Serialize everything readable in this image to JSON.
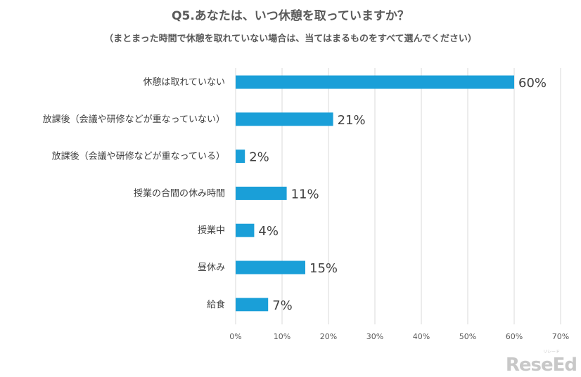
{
  "chart_data": {
    "type": "bar",
    "orientation": "horizontal",
    "title": "Q5.あなたは、いつ休憩を取っていますか？",
    "subtitle": "（まとまった時間で休憩を取れていない場合は、当てはまるものをすべて選んでください）",
    "categories": [
      "休憩は取れていない",
      "放課後（会議や研修などが重なっていない）",
      "放課後（会議や研修などが重なっている）",
      "授業の合間の休み時間",
      "授業中",
      "昼休み",
      "給食"
    ],
    "values": [
      60,
      21,
      2,
      11,
      4,
      15,
      7
    ],
    "value_labels": [
      "60%",
      "21%",
      "2%",
      "11%",
      "4%",
      "15%",
      "7%"
    ],
    "xlim": [
      0,
      70
    ],
    "xticks": [
      0,
      10,
      20,
      30,
      40,
      50,
      60,
      70
    ],
    "xtick_labels": [
      "0%",
      "10%",
      "20%",
      "30%",
      "40%",
      "50%",
      "60%",
      "70%"
    ],
    "grid": true,
    "bar_color": "#1a9fd8",
    "grid_color": "#d9d9d9"
  },
  "logo": {
    "text": "ReseEd",
    "small_text": "リシード"
  }
}
